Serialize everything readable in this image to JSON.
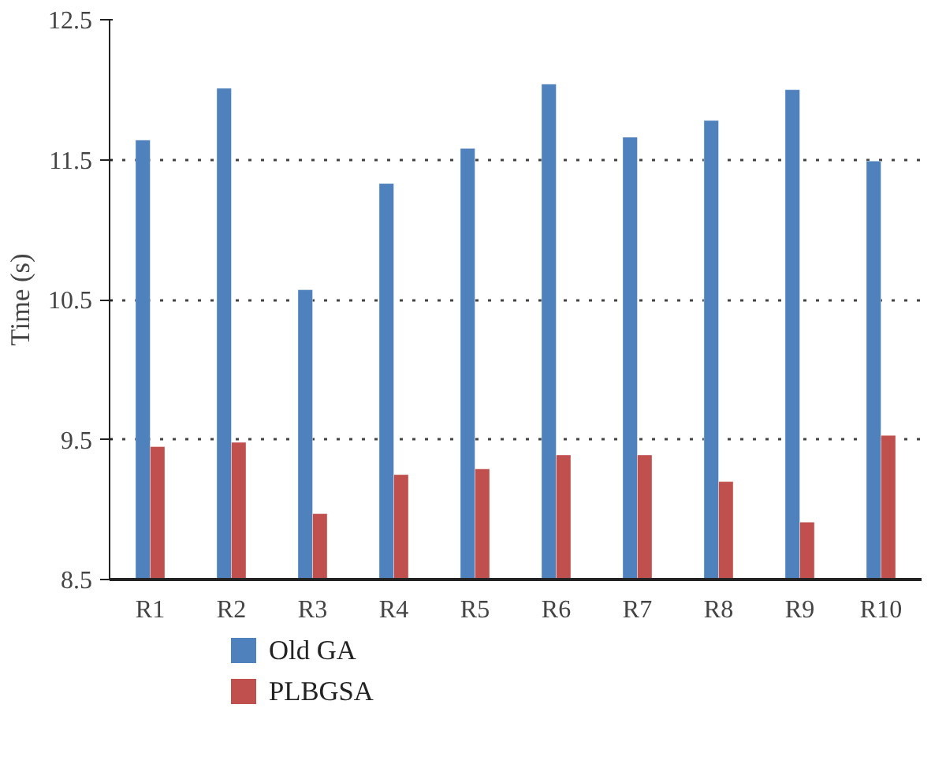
{
  "chart_data": {
    "type": "bar",
    "ylabel": "Time (s)",
    "categories": [
      "R1",
      "R2",
      "R3",
      "R4",
      "R5",
      "R6",
      "R7",
      "R8",
      "R9",
      "R10"
    ],
    "series": [
      {
        "name": "Old GA",
        "color": "#4f81bd",
        "values": [
          11.64,
          12.01,
          10.57,
          11.33,
          11.58,
          12.04,
          11.66,
          11.78,
          12.0,
          11.49
        ]
      },
      {
        "name": "PLBGSA",
        "color": "#c0504d",
        "values": [
          9.45,
          9.48,
          8.97,
          9.25,
          9.29,
          9.39,
          9.39,
          9.2,
          8.91,
          9.53
        ]
      }
    ],
    "ylim": [
      8.5,
      12.5
    ],
    "yticks": [
      8.5,
      9.5,
      10.5,
      11.5,
      12.5
    ],
    "grid": "y",
    "legend": "bottom left"
  }
}
